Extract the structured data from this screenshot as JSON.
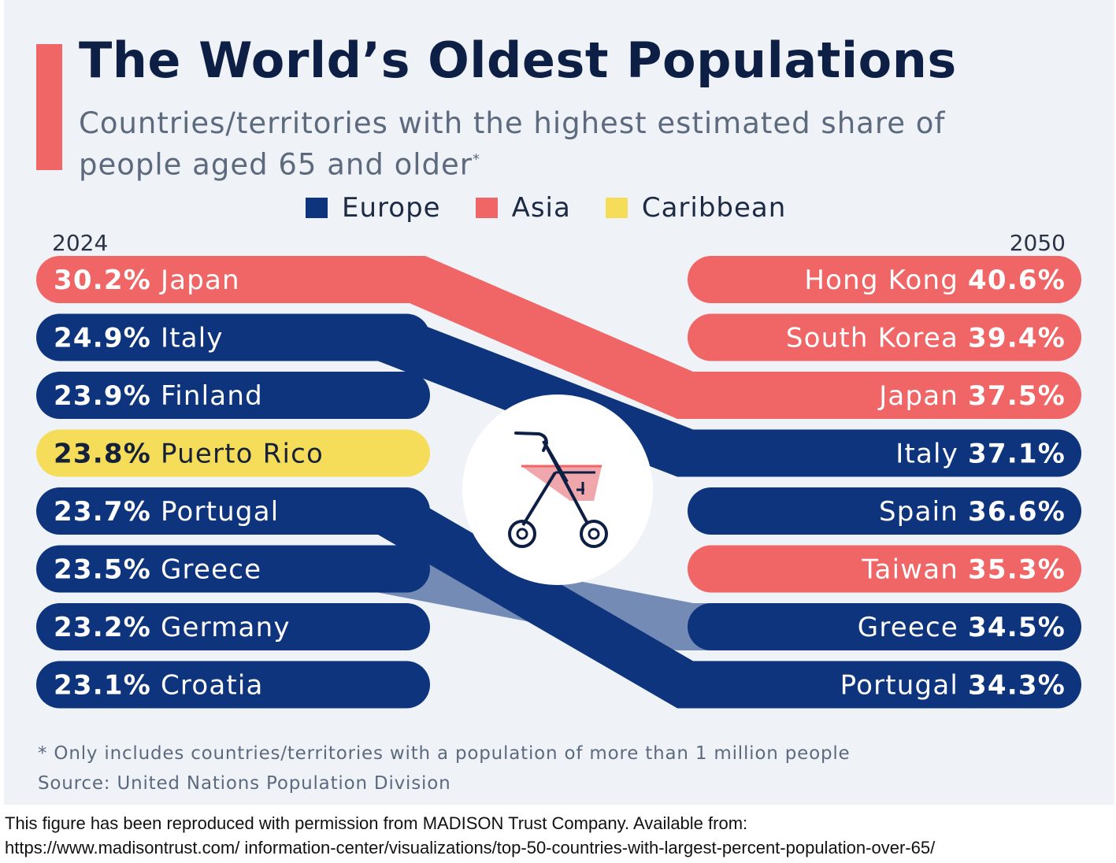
{
  "title": "The World’s Oldest Populations",
  "subtitle": "Countries/territories with the highest estimated share of people aged 65 and older",
  "subtitle_mark": "*",
  "legend": [
    {
      "label": "Europe",
      "color": "#0e347d"
    },
    {
      "label": "Asia",
      "color": "#f06565"
    },
    {
      "label": "Caribbean",
      "color": "#f6dd59"
    }
  ],
  "icon": "rollator-walker-icon",
  "chart_data": {
    "type": "slope",
    "left_year": "2024",
    "right_year": "2050",
    "left": [
      {
        "country": "Japan",
        "value": "30.2%",
        "region": "Asia"
      },
      {
        "country": "Italy",
        "value": "24.9%",
        "region": "Europe"
      },
      {
        "country": "Finland",
        "value": "23.9%",
        "region": "Europe"
      },
      {
        "country": "Puerto Rico",
        "value": "23.8%",
        "region": "Caribbean"
      },
      {
        "country": "Portugal",
        "value": "23.7%",
        "region": "Europe"
      },
      {
        "country": "Greece",
        "value": "23.5%",
        "region": "Europe"
      },
      {
        "country": "Germany",
        "value": "23.2%",
        "region": "Europe"
      },
      {
        "country": "Croatia",
        "value": "23.1%",
        "region": "Europe"
      }
    ],
    "right": [
      {
        "country": "Hong Kong",
        "value": "40.6%",
        "region": "Asia"
      },
      {
        "country": "South Korea",
        "value": "39.4%",
        "region": "Asia"
      },
      {
        "country": "Japan",
        "value": "37.5%",
        "region": "Asia"
      },
      {
        "country": "Italy",
        "value": "37.1%",
        "region": "Europe"
      },
      {
        "country": "Spain",
        "value": "36.6%",
        "region": "Europe"
      },
      {
        "country": "Taiwan",
        "value": "35.3%",
        "region": "Asia"
      },
      {
        "country": "Greece",
        "value": "34.5%",
        "region": "Europe"
      },
      {
        "country": "Portugal",
        "value": "34.3%",
        "region": "Europe"
      }
    ]
  },
  "footnote": "* Only includes countries/territories with a population of more than 1 million people",
  "source": "Source: United Nations Population Division",
  "credit_line1": "This figure has been reproduced with permission from MADISON Trust Company. Available from:",
  "credit_line2": "https://www.madisontrust.com/ information-center/visualizations/top-50-countries-with-largest-percent-population-over-65/"
}
